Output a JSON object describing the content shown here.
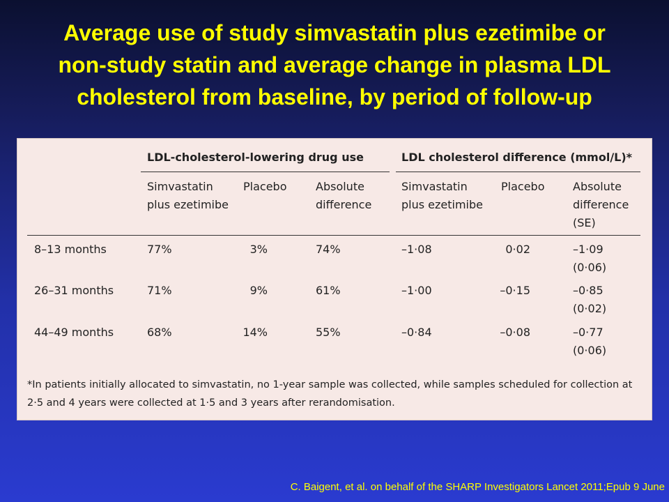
{
  "slide": {
    "title_lines": [
      "Average use of study simvastatin plus ezetimibe or",
      "non-study statin and average change in plasma LDL",
      "cholesterol from baseline, by period of follow-up"
    ],
    "citation": "C. Baigent, et al. on behalf of the SHARP Investigators Lancet 2011;Epub 9 June"
  },
  "table": {
    "group_headers": [
      "LDL-cholesterol-lowering drug use",
      "LDL cholesterol difference (mmol/L)*"
    ],
    "column_headers": [
      [
        "Simvastatin",
        "plus ezetimibe"
      ],
      [
        "Placebo"
      ],
      [
        "Absolute",
        "difference"
      ],
      [
        "Simvastatin",
        "plus ezetimibe"
      ],
      [
        "Placebo"
      ],
      [
        "Absolute",
        "difference",
        "(SE)"
      ]
    ],
    "rows": [
      {
        "period": "8–13 months",
        "drug_sim": "77%",
        "drug_placebo": "3%",
        "drug_diff": "74%",
        "ldl_sim": "–1·08",
        "ldl_placebo": "0·02",
        "ldl_diff": "–1·09",
        "ldl_se": "(0·06)"
      },
      {
        "period": "26–31 months",
        "drug_sim": "71%",
        "drug_placebo": "9%",
        "drug_diff": "61%",
        "ldl_sim": "–1·00",
        "ldl_placebo": "–0·15",
        "ldl_diff": "–0·85",
        "ldl_se": "(0·02)"
      },
      {
        "period": "44–49 months",
        "drug_sim": "68%",
        "drug_placebo": "14%",
        "drug_diff": "55%",
        "ldl_sim": "–0·84",
        "ldl_placebo": "–0·08",
        "ldl_diff": "–0·77",
        "ldl_se": "(0·06)"
      }
    ],
    "footnote": "*In patients initially allocated to simvastatin, no 1-year sample was collected, while samples scheduled for collection at 2·5 and 4 years were collected at 1·5 and 3 years after rerandomisation."
  },
  "colors": {
    "title": "#ffff00",
    "panel_background": "#f7e9e6",
    "background_top": "#0b1030",
    "background_bottom": "#2a3bd0"
  }
}
